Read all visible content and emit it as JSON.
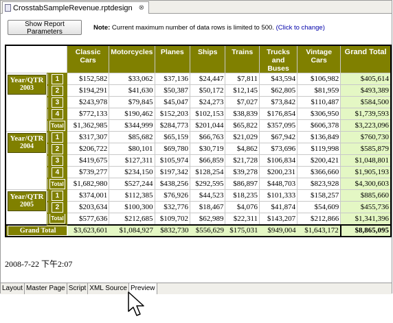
{
  "editor_tab": {
    "title": "CrosstabSampleRevenue.rptdesign",
    "close": "⊗"
  },
  "toolbar": {
    "params_button": "Show Report Parameters",
    "note_label": "Note:",
    "note_text": "Current maximum number of data rows is limited to 500.",
    "note_link": "(Click to change)"
  },
  "table": {
    "columns": [
      "Classic Cars",
      "Motorcycles",
      "Planes",
      "Ships",
      "Trains",
      "Trucks and Buses",
      "Vintage Cars",
      "Grand Total"
    ],
    "years": [
      {
        "label": "Year/QTR",
        "year": "2003",
        "rows": [
          {
            "q": "1",
            "values": [
              "$152,582",
              "$33,062",
              "$37,136",
              "$24,447",
              "$7,811",
              "$43,594",
              "$106,982",
              "$405,614"
            ]
          },
          {
            "q": "2",
            "values": [
              "$194,291",
              "$41,630",
              "$50,387",
              "$50,172",
              "$12,145",
              "$62,805",
              "$81,959",
              "$493,389"
            ]
          },
          {
            "q": "3",
            "values": [
              "$243,978",
              "$79,845",
              "$45,047",
              "$24,273",
              "$7,027",
              "$73,842",
              "$110,487",
              "$584,500"
            ]
          },
          {
            "q": "4",
            "values": [
              "$772,133",
              "$190,462",
              "$152,203",
              "$102,153",
              "$38,839",
              "$176,854",
              "$306,950",
              "$1,739,593"
            ]
          },
          {
            "q": "Total",
            "values": [
              "$1,362,985",
              "$344,999",
              "$284,773",
              "$201,044",
              "$65,822",
              "$357,095",
              "$606,378",
              "$3,223,096"
            ]
          }
        ]
      },
      {
        "label": "Year/QTR",
        "year": "2004",
        "rows": [
          {
            "q": "1",
            "values": [
              "$317,307",
              "$85,682",
              "$65,159",
              "$66,763",
              "$21,029",
              "$67,942",
              "$136,849",
              "$760,730"
            ]
          },
          {
            "q": "2",
            "values": [
              "$206,722",
              "$80,101",
              "$69,780",
              "$30,719",
              "$4,862",
              "$73,696",
              "$119,998",
              "$585,879"
            ]
          },
          {
            "q": "3",
            "values": [
              "$419,675",
              "$127,311",
              "$105,974",
              "$66,859",
              "$21,728",
              "$106,834",
              "$200,421",
              "$1,048,801"
            ]
          },
          {
            "q": "4",
            "values": [
              "$739,277",
              "$234,150",
              "$197,342",
              "$128,254",
              "$39,278",
              "$200,231",
              "$366,660",
              "$1,905,193"
            ]
          },
          {
            "q": "Total",
            "values": [
              "$1,682,980",
              "$527,244",
              "$438,256",
              "$292,595",
              "$86,897",
              "$448,703",
              "$823,928",
              "$4,300,603"
            ]
          }
        ]
      },
      {
        "label": "Year/QTR",
        "year": "2005",
        "rows": [
          {
            "q": "1",
            "values": [
              "$374,001",
              "$112,385",
              "$76,926",
              "$44,523",
              "$18,235",
              "$101,333",
              "$158,257",
              "$885,660"
            ]
          },
          {
            "q": "2",
            "values": [
              "$203,634",
              "$100,300",
              "$32,776",
              "$18,467",
              "$4,076",
              "$41,874",
              "$54,609",
              "$455,736"
            ]
          },
          {
            "q": "Total",
            "values": [
              "$577,636",
              "$212,685",
              "$109,702",
              "$62,989",
              "$22,311",
              "$143,207",
              "$212,866",
              "$1,341,396"
            ]
          }
        ]
      }
    ],
    "grand_total": {
      "label": "Grand Total",
      "values": [
        "$3,623,601",
        "$1,084,927",
        "$832,730",
        "$556,629",
        "$175,031",
        "$949,004",
        "$1,643,172",
        "$8,865,095"
      ]
    }
  },
  "timestamp": "2008-7-22 下午2:07",
  "bottom_tabs": [
    {
      "label": "Layout",
      "active": false
    },
    {
      "label": "Master Page",
      "active": false
    },
    {
      "label": "Script",
      "active": false
    },
    {
      "label": "XML Source",
      "active": false
    },
    {
      "label": "Preview",
      "active": true
    }
  ],
  "colors": {
    "header": "#808000",
    "grand_total_bg": "#e4f7c4"
  },
  "icons": {
    "cursor": "arrow-cursor-icon",
    "tab": "report-file-icon"
  }
}
